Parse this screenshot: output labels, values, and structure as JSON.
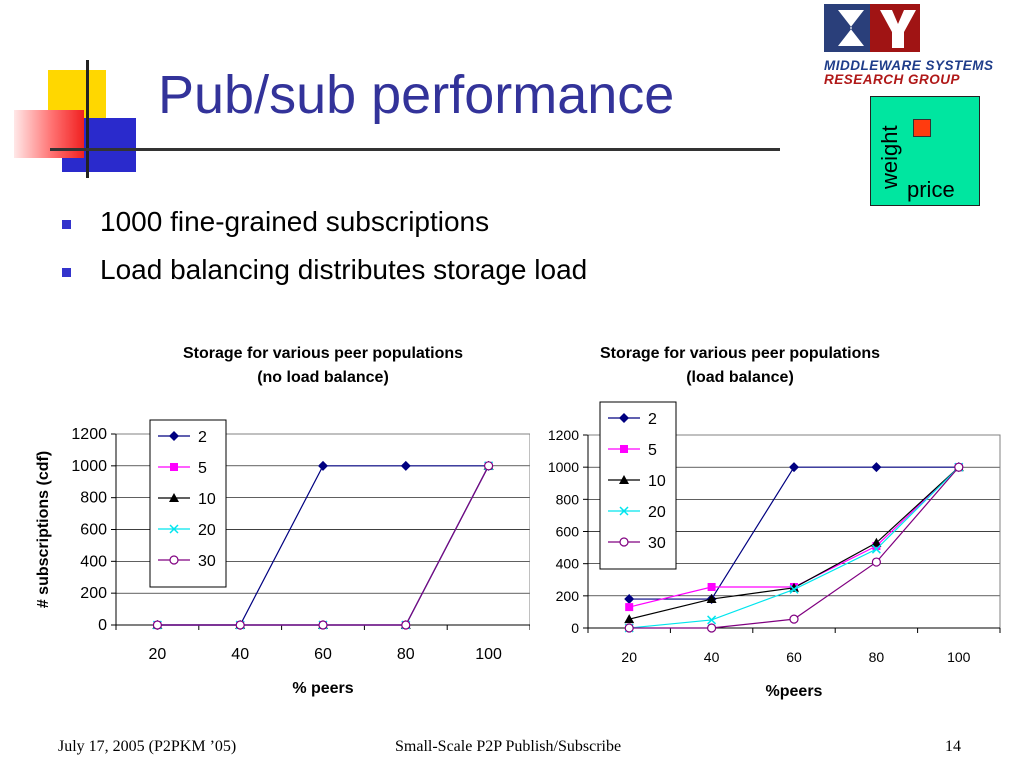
{
  "slide": {
    "title": "Pub/sub performance",
    "bullets": [
      "1000 fine-grained subscriptions",
      "Load balancing distributes storage load"
    ],
    "logo": {
      "line1": "MIDDLEWARE SYSTEMS",
      "line2": "RESEARCH GROUP"
    },
    "legend_box": {
      "vertical_label": "weight",
      "horizontal_label": "price"
    },
    "footer": {
      "left": "July 17, 2005 (P2PKM ’05)",
      "center": "Small-Scale P2P Publish/Subscribe",
      "right": "14"
    }
  },
  "colors": {
    "title": "#33339a",
    "bullet": "#3333cc",
    "legend_box_bg": "#00e6a0",
    "legend_box_marker": "#ff3b0f",
    "series": {
      "2": "#000080",
      "5": "#ff00ff",
      "10": "#000000",
      "20": "#00e5ee",
      "30": "#800080"
    }
  },
  "chart_data": [
    {
      "type": "line",
      "title": [
        "Storage for various peer populations",
        "(no load balance)"
      ],
      "xlabel": "% peers",
      "ylabel": "# subscriptions (cdf)",
      "x": [
        20,
        40,
        60,
        80,
        100
      ],
      "xticks": [
        "20",
        "40",
        "60",
        "80",
        "100"
      ],
      "yticks": [
        "0",
        "200",
        "400",
        "600",
        "800",
        "1000",
        "1200"
      ],
      "ylim": [
        0,
        1200
      ],
      "grid": true,
      "legend_position": "top-left-inside",
      "series": [
        {
          "name": "2",
          "marker": "diamond",
          "values": [
            0,
            0,
            1000,
            1000,
            1000
          ]
        },
        {
          "name": "5",
          "marker": "square",
          "values": [
            0,
            0,
            0,
            0,
            1000
          ]
        },
        {
          "name": "10",
          "marker": "triangle",
          "values": [
            0,
            0,
            0,
            0,
            1000
          ]
        },
        {
          "name": "20",
          "marker": "x",
          "values": [
            0,
            0,
            0,
            0,
            1000
          ]
        },
        {
          "name": "30",
          "marker": "circle",
          "values": [
            0,
            0,
            0,
            0,
            1000
          ]
        }
      ]
    },
    {
      "type": "line",
      "title": [
        "Storage for various peer populations",
        "(load balance)"
      ],
      "xlabel": "%peers",
      "ylabel": "",
      "x": [
        20,
        40,
        60,
        80,
        100
      ],
      "xticks": [
        "20",
        "40",
        "60",
        "80",
        "100"
      ],
      "yticks": [
        "0",
        "200",
        "400",
        "600",
        "800",
        "1000",
        "1200"
      ],
      "ylim": [
        0,
        1200
      ],
      "grid": true,
      "legend_position": "top-left-inside",
      "series": [
        {
          "name": "2",
          "marker": "diamond",
          "values": [
            180,
            180,
            1000,
            1000,
            1000
          ]
        },
        {
          "name": "5",
          "marker": "square",
          "values": [
            130,
            255,
            255,
            510,
            1000
          ]
        },
        {
          "name": "10",
          "marker": "triangle",
          "values": [
            55,
            180,
            250,
            530,
            1000
          ]
        },
        {
          "name": "20",
          "marker": "x",
          "values": [
            0,
            50,
            240,
            490,
            1000
          ]
        },
        {
          "name": "30",
          "marker": "circle",
          "values": [
            0,
            0,
            55,
            410,
            1000
          ]
        }
      ]
    }
  ]
}
